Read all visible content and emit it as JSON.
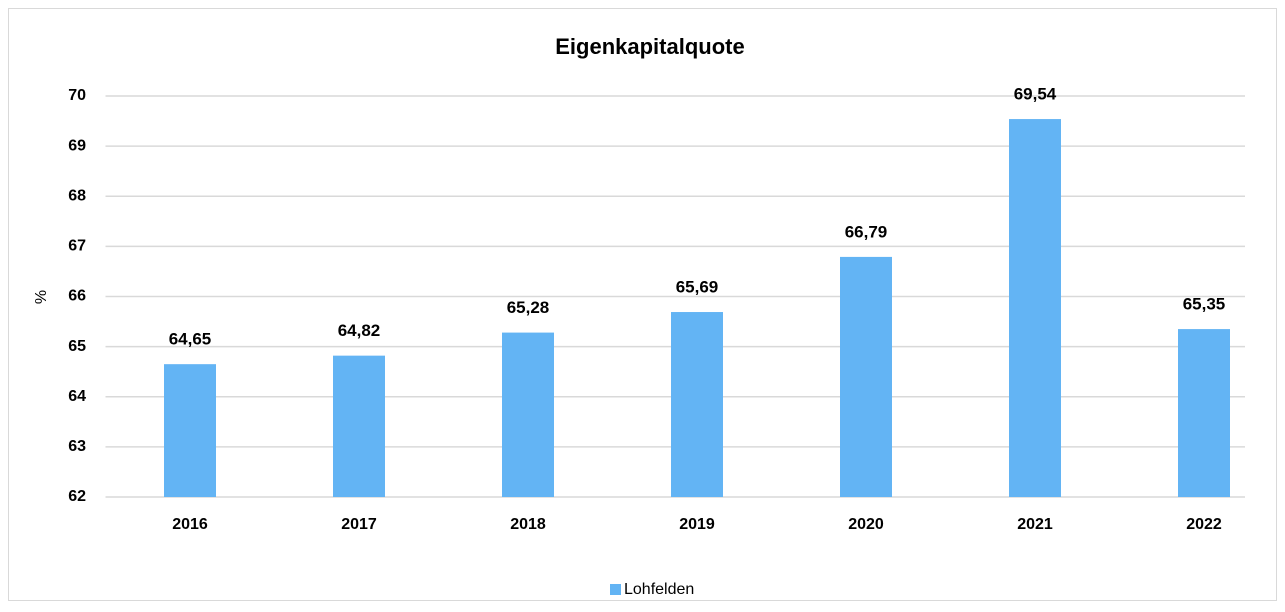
{
  "chart_data": {
    "type": "bar",
    "title": "Eigenkapitalquote",
    "y_label": "%",
    "categories": [
      "2016",
      "2017",
      "2018",
      "2019",
      "2020",
      "2021",
      "2022"
    ],
    "series": [
      {
        "name": "Lohfelden",
        "color": "#63b4f4",
        "values": [
          64.65,
          64.82,
          65.28,
          65.69,
          66.79,
          69.54,
          65.35
        ],
        "value_labels": [
          "64,65",
          "64,82",
          "65,28",
          "65,69",
          "66,79",
          "69,54",
          "65,35"
        ]
      }
    ],
    "ylim": [
      62,
      70
    ],
    "yticks": [
      62,
      63,
      64,
      65,
      66,
      67,
      68,
      69,
      70
    ],
    "grid": true,
    "legend": "bottom"
  }
}
